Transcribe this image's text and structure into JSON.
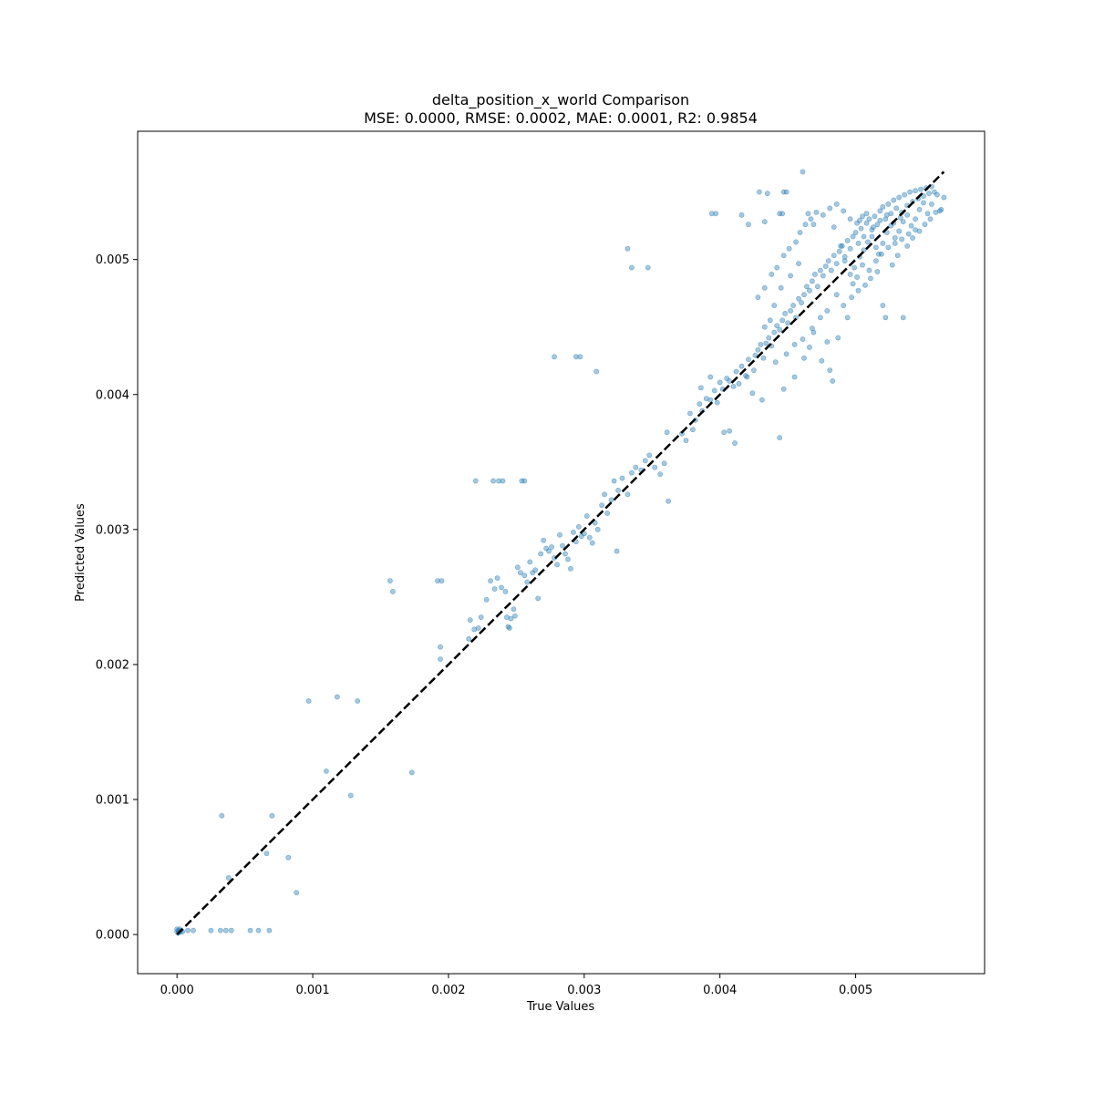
{
  "chart_data": {
    "type": "scatter",
    "title_line1": "delta_position_x_world Comparison",
    "title_line2": "MSE: 0.0000, RMSE: 0.0002, MAE: 0.0001, R2: 0.9854",
    "xlabel": "True Values",
    "ylabel": "Predicted Values",
    "xlim": [
      -0.00029,
      0.00595
    ],
    "ylim": [
      -0.00029,
      0.00595
    ],
    "xticks": [
      0.0,
      0.001,
      0.002,
      0.003,
      0.004,
      0.005
    ],
    "yticks": [
      0.0,
      0.001,
      0.002,
      0.003,
      0.004,
      0.005
    ],
    "xtick_labels": [
      "0.000",
      "0.001",
      "0.002",
      "0.003",
      "0.004",
      "0.005"
    ],
    "ytick_labels": [
      "0.000",
      "0.001",
      "0.002",
      "0.003",
      "0.004",
      "0.005"
    ],
    "point_color": "#1f77b4",
    "point_alpha": 0.4,
    "reference_line": {
      "style": "dashed",
      "color": "#000000",
      "from": [
        0,
        0
      ],
      "to": [
        0.00565,
        0.00565
      ]
    },
    "points": [
      [
        0.0,
        2e-05
      ],
      [
        1e-05,
        3e-05
      ],
      [
        2e-05,
        2e-05
      ],
      [
        0.0,
        4e-05
      ],
      [
        3e-05,
        3e-05
      ],
      [
        1e-05,
        1e-05
      ],
      [
        2e-05,
        4e-05
      ],
      [
        4e-05,
        2e-05
      ],
      [
        8e-05,
        3e-05
      ],
      [
        0.00012,
        3e-05
      ],
      [
        0.00025,
        3e-05
      ],
      [
        0.00032,
        3e-05
      ],
      [
        0.00036,
        3e-05
      ],
      [
        0.0004,
        3e-05
      ],
      [
        0.00054,
        3e-05
      ],
      [
        0.0006,
        3e-05
      ],
      [
        0.00068,
        3e-05
      ],
      [
        0.00033,
        0.00088
      ],
      [
        0.0007,
        0.00088
      ],
      [
        0.00038,
        0.00042
      ],
      [
        0.00066,
        0.0006
      ],
      [
        0.00082,
        0.00057
      ],
      [
        0.00088,
        0.00031
      ],
      [
        0.00097,
        0.00173
      ],
      [
        0.00118,
        0.00176
      ],
      [
        0.00133,
        0.00173
      ],
      [
        0.0011,
        0.00121
      ],
      [
        0.00128,
        0.00103
      ],
      [
        0.00173,
        0.0012
      ],
      [
        0.00157,
        0.00262
      ],
      [
        0.00159,
        0.00254
      ],
      [
        0.00192,
        0.00262
      ],
      [
        0.00195,
        0.00262
      ],
      [
        0.00194,
        0.00213
      ],
      [
        0.00194,
        0.00204
      ],
      [
        0.00215,
        0.00219
      ],
      [
        0.00216,
        0.00233
      ],
      [
        0.00219,
        0.00226
      ],
      [
        0.00222,
        0.00227
      ],
      [
        0.00224,
        0.00235
      ],
      [
        0.00228,
        0.00248
      ],
      [
        0.00231,
        0.00262
      ],
      [
        0.00234,
        0.00256
      ],
      [
        0.00236,
        0.00264
      ],
      [
        0.00239,
        0.00257
      ],
      [
        0.00242,
        0.00254
      ],
      [
        0.00243,
        0.00235
      ],
      [
        0.00244,
        0.00228
      ],
      [
        0.00245,
        0.00227
      ],
      [
        0.00246,
        0.00234
      ],
      [
        0.00248,
        0.00241
      ],
      [
        0.00249,
        0.00236
      ],
      [
        0.00251,
        0.00272
      ],
      [
        0.00253,
        0.00268
      ],
      [
        0.00256,
        0.00266
      ],
      [
        0.00258,
        0.00261
      ],
      [
        0.0026,
        0.00276
      ],
      [
        0.00262,
        0.00268
      ],
      [
        0.00264,
        0.0027
      ],
      [
        0.00266,
        0.00249
      ],
      [
        0.00268,
        0.00282
      ],
      [
        0.0027,
        0.00292
      ],
      [
        0.00272,
        0.00286
      ],
      [
        0.00274,
        0.00284
      ],
      [
        0.00276,
        0.00287
      ],
      [
        0.00278,
        0.00279
      ],
      [
        0.0028,
        0.00274
      ],
      [
        0.00282,
        0.00296
      ],
      [
        0.00284,
        0.00288
      ],
      [
        0.00286,
        0.00282
      ],
      [
        0.00288,
        0.00278
      ],
      [
        0.0029,
        0.00271
      ],
      [
        0.00292,
        0.00298
      ],
      [
        0.00294,
        0.00291
      ],
      [
        0.00296,
        0.00302
      ],
      [
        0.00298,
        0.00295
      ],
      [
        0.003,
        0.00297
      ],
      [
        0.00302,
        0.0031
      ],
      [
        0.00304,
        0.00294
      ],
      [
        0.00306,
        0.0029
      ],
      [
        0.00308,
        0.00305
      ],
      [
        0.0031,
        0.003
      ],
      [
        0.00313,
        0.00318
      ],
      [
        0.00315,
        0.00326
      ],
      [
        0.00317,
        0.00312
      ],
      [
        0.0032,
        0.00322
      ],
      [
        0.00322,
        0.00336
      ],
      [
        0.00325,
        0.00329
      ],
      [
        0.00328,
        0.00338
      ],
      [
        0.00332,
        0.00326
      ],
      [
        0.00335,
        0.00342
      ],
      [
        0.00338,
        0.00346
      ],
      [
        0.00342,
        0.00344
      ],
      [
        0.00345,
        0.00351
      ],
      [
        0.00348,
        0.00355
      ],
      [
        0.00352,
        0.00346
      ],
      [
        0.00356,
        0.00341
      ],
      [
        0.00359,
        0.00349
      ],
      [
        0.00362,
        0.00321
      ],
      [
        0.00324,
        0.00284
      ],
      [
        0.0022,
        0.00336
      ],
      [
        0.00233,
        0.00336
      ],
      [
        0.00237,
        0.00336
      ],
      [
        0.0024,
        0.00336
      ],
      [
        0.00254,
        0.00336
      ],
      [
        0.00256,
        0.00336
      ],
      [
        0.00278,
        0.00428
      ],
      [
        0.00294,
        0.00428
      ],
      [
        0.00297,
        0.00428
      ],
      [
        0.00309,
        0.00417
      ],
      [
        0.00332,
        0.00508
      ],
      [
        0.00335,
        0.00494
      ],
      [
        0.00347,
        0.00494
      ],
      [
        0.00361,
        0.00372
      ],
      [
        0.0038,
        0.00374
      ],
      [
        0.00382,
        0.00381
      ],
      [
        0.00385,
        0.00393
      ],
      [
        0.00387,
        0.00388
      ],
      [
        0.0039,
        0.00397
      ],
      [
        0.00393,
        0.00396
      ],
      [
        0.00396,
        0.00403
      ],
      [
        0.00398,
        0.00394
      ],
      [
        0.004,
        0.00409
      ],
      [
        0.00402,
        0.00404
      ],
      [
        0.00405,
        0.00412
      ],
      [
        0.00407,
        0.0041
      ],
      [
        0.0041,
        0.00406
      ],
      [
        0.00412,
        0.00417
      ],
      [
        0.00414,
        0.00408
      ],
      [
        0.00416,
        0.00421
      ],
      [
        0.00419,
        0.00414
      ],
      [
        0.00421,
        0.00426
      ],
      [
        0.00424,
        0.00401
      ],
      [
        0.00426,
        0.00429
      ],
      [
        0.00428,
        0.00433
      ],
      [
        0.0043,
        0.00437
      ],
      [
        0.00432,
        0.00427
      ],
      [
        0.00434,
        0.00438
      ],
      [
        0.00436,
        0.00442
      ],
      [
        0.00438,
        0.00436
      ],
      [
        0.0044,
        0.00446
      ],
      [
        0.00442,
        0.00451
      ],
      [
        0.00444,
        0.00448
      ],
      [
        0.00446,
        0.00455
      ],
      [
        0.00448,
        0.0046
      ],
      [
        0.0045,
        0.00453
      ],
      [
        0.00452,
        0.00462
      ],
      [
        0.00454,
        0.00466
      ],
      [
        0.00456,
        0.00457
      ],
      [
        0.00458,
        0.00471
      ],
      [
        0.0046,
        0.00468
      ],
      [
        0.00462,
        0.00474
      ],
      [
        0.00464,
        0.0048
      ],
      [
        0.00466,
        0.00477
      ],
      [
        0.00468,
        0.00484
      ],
      [
        0.0047,
        0.00489
      ],
      [
        0.00472,
        0.0048
      ],
      [
        0.00474,
        0.00492
      ],
      [
        0.00476,
        0.00488
      ],
      [
        0.00478,
        0.00495
      ],
      [
        0.0048,
        0.00499
      ],
      [
        0.00482,
        0.00492
      ],
      [
        0.00484,
        0.00503
      ],
      [
        0.00486,
        0.00497
      ],
      [
        0.00488,
        0.00506
      ],
      [
        0.0049,
        0.0051
      ],
      [
        0.00492,
        0.00502
      ],
      [
        0.00494,
        0.00514
      ],
      [
        0.00496,
        0.00508
      ],
      [
        0.00498,
        0.00517
      ],
      [
        0.005,
        0.0052
      ],
      [
        0.00502,
        0.00512
      ],
      [
        0.00504,
        0.00523
      ],
      [
        0.00506,
        0.00517
      ],
      [
        0.00508,
        0.00527
      ],
      [
        0.0051,
        0.0053
      ],
      [
        0.00512,
        0.00522
      ],
      [
        0.00514,
        0.00532
      ],
      [
        0.00516,
        0.00526
      ],
      [
        0.00518,
        0.00536
      ],
      [
        0.0052,
        0.00539
      ],
      [
        0.00522,
        0.0053
      ],
      [
        0.00524,
        0.00541
      ],
      [
        0.00526,
        0.00534
      ],
      [
        0.00528,
        0.00544
      ],
      [
        0.0053,
        0.00538
      ],
      [
        0.00532,
        0.00546
      ],
      [
        0.00534,
        0.00535
      ],
      [
        0.00536,
        0.00548
      ],
      [
        0.00538,
        0.0054
      ],
      [
        0.0054,
        0.0055
      ],
      [
        0.00542,
        0.00543
      ],
      [
        0.00544,
        0.00551
      ],
      [
        0.00546,
        0.00545
      ],
      [
        0.00548,
        0.00552
      ],
      [
        0.0055,
        0.00547
      ],
      [
        0.00552,
        0.00553
      ],
      [
        0.00554,
        0.00549
      ],
      [
        0.00556,
        0.00554
      ],
      [
        0.00558,
        0.0055
      ],
      [
        0.0056,
        0.00548
      ],
      [
        0.00562,
        0.00536
      ],
      [
        0.00565,
        0.00546
      ],
      [
        0.00372,
        0.00371
      ],
      [
        0.00375,
        0.00366
      ],
      [
        0.00378,
        0.00386
      ],
      [
        0.00386,
        0.00405
      ],
      [
        0.00393,
        0.00413
      ],
      [
        0.00403,
        0.00372
      ],
      [
        0.00407,
        0.00373
      ],
      [
        0.00411,
        0.00364
      ],
      [
        0.0042,
        0.00413
      ],
      [
        0.00425,
        0.00418
      ],
      [
        0.00431,
        0.00396
      ],
      [
        0.00444,
        0.00368
      ],
      [
        0.00441,
        0.00424
      ],
      [
        0.00447,
        0.00404
      ],
      [
        0.00455,
        0.00413
      ],
      [
        0.00462,
        0.00427
      ],
      [
        0.00466,
        0.00435
      ],
      [
        0.00469,
        0.00446
      ],
      [
        0.00475,
        0.00425
      ],
      [
        0.00479,
        0.00439
      ],
      [
        0.00481,
        0.00418
      ],
      [
        0.00483,
        0.0041
      ],
      [
        0.00487,
        0.00442
      ],
      [
        0.00491,
        0.00466
      ],
      [
        0.00494,
        0.00457
      ],
      [
        0.00497,
        0.00472
      ],
      [
        0.00502,
        0.00477
      ],
      [
        0.00507,
        0.00481
      ],
      [
        0.00511,
        0.00486
      ],
      [
        0.00516,
        0.00491
      ],
      [
        0.0052,
        0.00466
      ],
      [
        0.00522,
        0.00457
      ],
      [
        0.00527,
        0.00496
      ],
      [
        0.00531,
        0.00503
      ],
      [
        0.00535,
        0.00457
      ],
      [
        0.00538,
        0.0051
      ],
      [
        0.00542,
        0.00516
      ],
      [
        0.00547,
        0.00521
      ],
      [
        0.00551,
        0.00526
      ],
      [
        0.00555,
        0.0053
      ],
      [
        0.00559,
        0.00535
      ],
      [
        0.00563,
        0.00537
      ],
      [
        0.00428,
        0.00472
      ],
      [
        0.00433,
        0.00479
      ],
      [
        0.00438,
        0.00489
      ],
      [
        0.00442,
        0.00494
      ],
      [
        0.00447,
        0.00503
      ],
      [
        0.00451,
        0.00508
      ],
      [
        0.00456,
        0.00513
      ],
      [
        0.00459,
        0.0052
      ],
      [
        0.00463,
        0.00526
      ],
      [
        0.00467,
        0.0053
      ],
      [
        0.00471,
        0.00535
      ],
      [
        0.00476,
        0.00533
      ],
      [
        0.00481,
        0.00538
      ],
      [
        0.00486,
        0.00541
      ],
      [
        0.00491,
        0.00536
      ],
      [
        0.00496,
        0.0053
      ],
      [
        0.00501,
        0.00527
      ],
      [
        0.00505,
        0.00532
      ],
      [
        0.00429,
        0.0055
      ],
      [
        0.00435,
        0.00549
      ],
      [
        0.00447,
        0.0055
      ],
      [
        0.00449,
        0.0055
      ],
      [
        0.00461,
        0.00565
      ],
      [
        0.00444,
        0.00534
      ],
      [
        0.00446,
        0.00534
      ],
      [
        0.00465,
        0.00534
      ],
      [
        0.00394,
        0.00534
      ],
      [
        0.00397,
        0.00534
      ],
      [
        0.00416,
        0.00533
      ],
      [
        0.00421,
        0.00526
      ],
      [
        0.00433,
        0.00528
      ],
      [
        0.00469,
        0.00526
      ],
      [
        0.00484,
        0.00524
      ],
      [
        0.00489,
        0.0051
      ],
      [
        0.00492,
        0.00499
      ],
      [
        0.00496,
        0.00489
      ],
      [
        0.00499,
        0.00494
      ],
      [
        0.00503,
        0.00502
      ],
      [
        0.00506,
        0.00507
      ],
      [
        0.00509,
        0.00513
      ],
      [
        0.00512,
        0.00517
      ],
      [
        0.00515,
        0.00509
      ],
      [
        0.00517,
        0.00504
      ],
      [
        0.0052,
        0.00512
      ],
      [
        0.00523,
        0.0052
      ],
      [
        0.00526,
        0.00525
      ],
      [
        0.00529,
        0.00516
      ],
      [
        0.00532,
        0.00521
      ],
      [
        0.00535,
        0.00528
      ],
      [
        0.00538,
        0.00533
      ],
      [
        0.00541,
        0.00525
      ],
      [
        0.00544,
        0.0053
      ],
      [
        0.00547,
        0.00537
      ],
      [
        0.0055,
        0.00542
      ],
      [
        0.00553,
        0.00534
      ],
      [
        0.00556,
        0.00541
      ],
      [
        0.00503,
        0.00529
      ],
      [
        0.00508,
        0.00534
      ],
      [
        0.00513,
        0.00524
      ],
      [
        0.00518,
        0.00529
      ],
      [
        0.00523,
        0.00533
      ],
      [
        0.00528,
        0.00527
      ],
      [
        0.00533,
        0.00531
      ],
      [
        0.00505,
        0.00496
      ],
      [
        0.0051,
        0.00492
      ],
      [
        0.00515,
        0.00499
      ],
      [
        0.00519,
        0.00504
      ],
      [
        0.00524,
        0.00509
      ],
      [
        0.00529,
        0.00512
      ],
      [
        0.00534,
        0.00515
      ],
      [
        0.00539,
        0.00519
      ],
      [
        0.00544,
        0.00522
      ],
      [
        0.00498,
        0.00482
      ],
      [
        0.00501,
        0.00487
      ],
      [
        0.00486,
        0.00474
      ],
      [
        0.00479,
        0.00462
      ],
      [
        0.00474,
        0.00457
      ],
      [
        0.00468,
        0.00449
      ],
      [
        0.00461,
        0.00441
      ],
      [
        0.00455,
        0.00437
      ],
      [
        0.00449,
        0.0043
      ],
      [
        0.00458,
        0.00497
      ],
      [
        0.00452,
        0.00488
      ],
      [
        0.00445,
        0.00479
      ],
      [
        0.0044,
        0.00466
      ],
      [
        0.00437,
        0.00455
      ],
      [
        0.00433,
        0.0045
      ]
    ]
  }
}
